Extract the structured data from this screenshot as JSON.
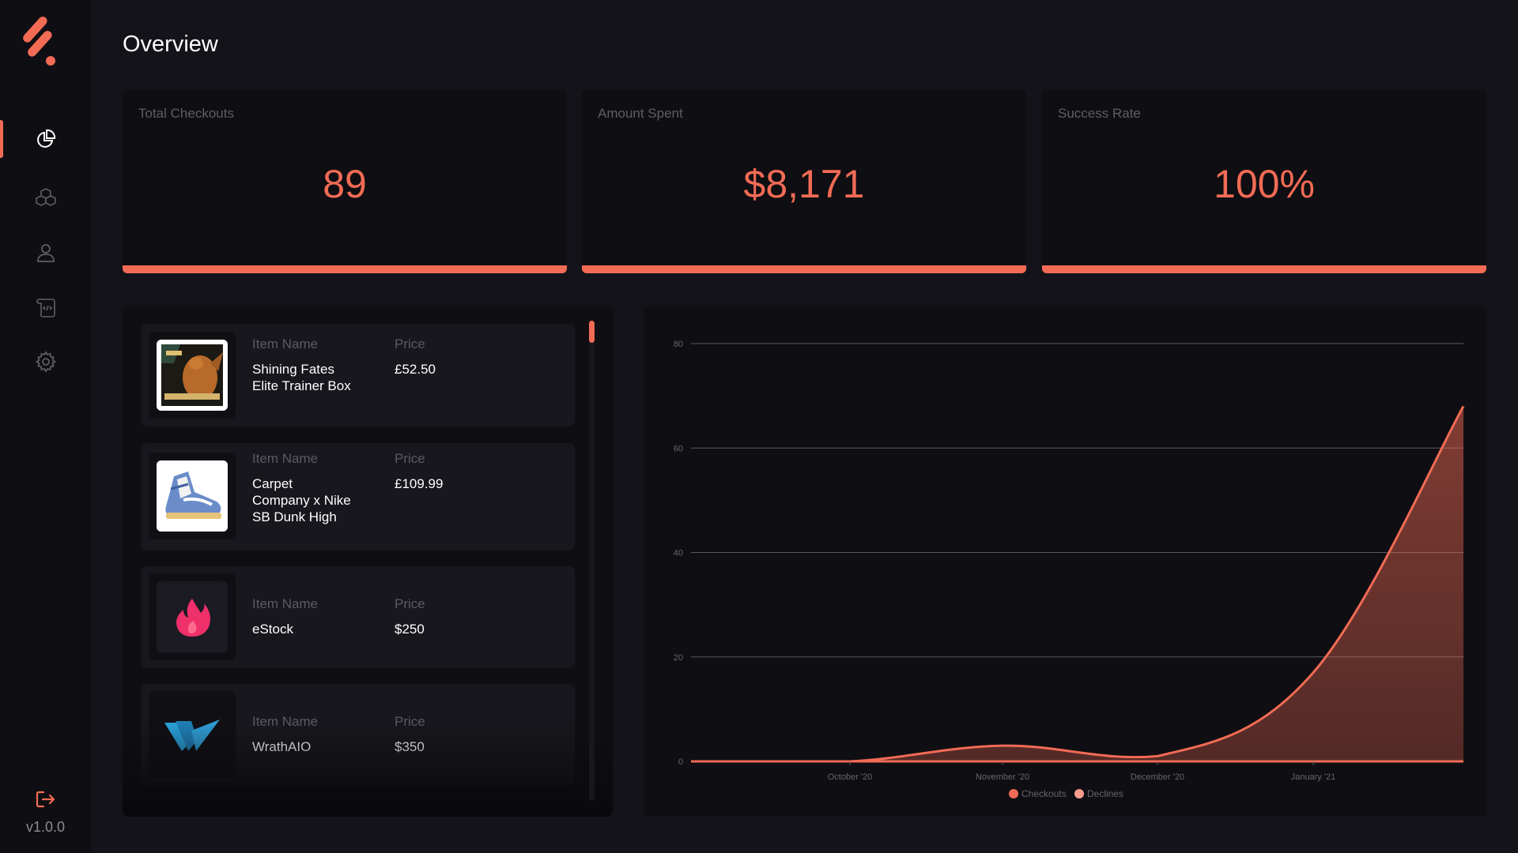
{
  "app": {
    "version": "v1.0.0"
  },
  "sidebar": {
    "items": [
      {
        "name": "overview",
        "icon": "pie-chart-icon",
        "active": true
      },
      {
        "name": "products",
        "icon": "cubes-icon",
        "active": false
      },
      {
        "name": "profiles",
        "icon": "user-icon",
        "active": false
      },
      {
        "name": "scripts",
        "icon": "scroll-icon",
        "active": false
      },
      {
        "name": "settings",
        "icon": "gear-icon",
        "active": false
      }
    ],
    "logout_icon": "logout-icon"
  },
  "page": {
    "title": "Overview"
  },
  "stats": [
    {
      "label": "Total Checkouts",
      "value": "89"
    },
    {
      "label": "Amount Spent",
      "value": "$8,171"
    },
    {
      "label": "Success Rate",
      "value": "100%"
    }
  ],
  "checkouts": {
    "column_labels": {
      "name": "Item Name",
      "price": "Price"
    },
    "items": [
      {
        "name": "Shining Fates Elite Trainer Box",
        "price": "£52.50",
        "thumb": "pokemon-box-image"
      },
      {
        "name": "Carpet Company x Nike SB Dunk High",
        "price": "£109.99",
        "thumb": "sneaker-image"
      },
      {
        "name": "eStock",
        "price": "$250",
        "thumb": "flame-logo"
      },
      {
        "name": "WrathAIO",
        "price": "$350",
        "thumb": "wrath-logo"
      }
    ]
  },
  "colors": {
    "accent": "#f26b55",
    "panel": "#0f0e12",
    "background": "#141319",
    "card": "#18171d"
  },
  "chart_data": {
    "type": "area",
    "x": [
      "October '20",
      "November '20",
      "December '20",
      "January '21"
    ],
    "ylim": [
      0,
      80
    ],
    "yticks": [
      "0",
      "20",
      "40",
      "60",
      "80"
    ],
    "grid": true,
    "legend_position": "bottom",
    "series": [
      {
        "name": "Checkouts",
        "color": "#f26b55",
        "points": [
          {
            "x": "Sep 2020",
            "y": 0
          },
          {
            "x": "Oct 2020",
            "y": 0
          },
          {
            "x": "Nov 2020",
            "y": 3
          },
          {
            "x": "Dec 2020",
            "y": 1
          },
          {
            "x": "Jan 2021",
            "y": 17
          },
          {
            "x": "Feb 2021",
            "y": 68
          }
        ]
      },
      {
        "name": "Declines",
        "color": "#f89c8e",
        "points": [
          {
            "x": "Sep 2020",
            "y": 0
          },
          {
            "x": "Oct 2020",
            "y": 0
          },
          {
            "x": "Nov 2020",
            "y": 0
          },
          {
            "x": "Dec 2020",
            "y": 0
          },
          {
            "x": "Jan 2021",
            "y": 0
          },
          {
            "x": "Feb 2021",
            "y": 0
          }
        ]
      }
    ]
  }
}
